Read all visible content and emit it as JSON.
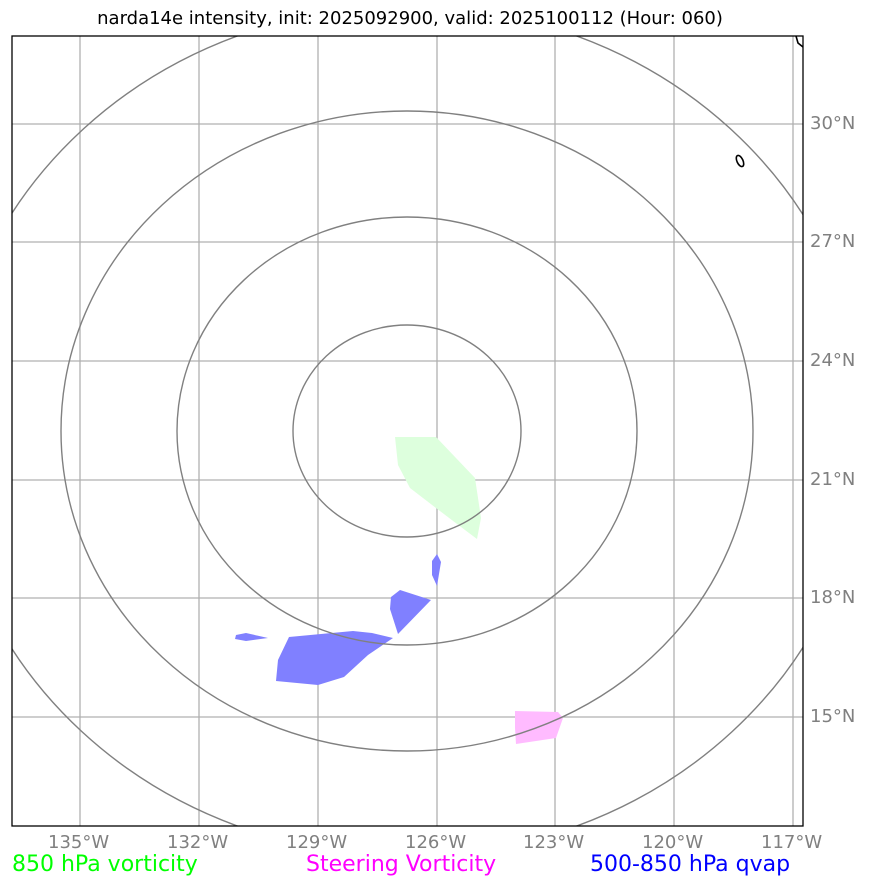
{
  "title": "narda14e intensity, init: 2025092900, valid: 2025100112 (Hour: 060)",
  "lon_labels": [
    "135°W",
    "132°W",
    "129°W",
    "126°W",
    "123°W",
    "120°W",
    "117°W"
  ],
  "lat_labels": [
    "30°N",
    "27°N",
    "24°N",
    "21°N",
    "18°N",
    "15°N"
  ],
  "legend": [
    {
      "label": "850 hPa vorticity",
      "color": "#00ff00"
    },
    {
      "label": "Steering Vorticity",
      "color": "#ff00ff"
    },
    {
      "label": "500-850 hPa qvap",
      "color": "#0000ff"
    }
  ],
  "colors": {
    "grid": "#b0b0b0",
    "range_rings": "#808080",
    "coastline": "#000000",
    "vorticity_fill": "#ddffdd",
    "steering_fill": "#ffbbff",
    "qvap_fill": "#8080ff"
  }
}
